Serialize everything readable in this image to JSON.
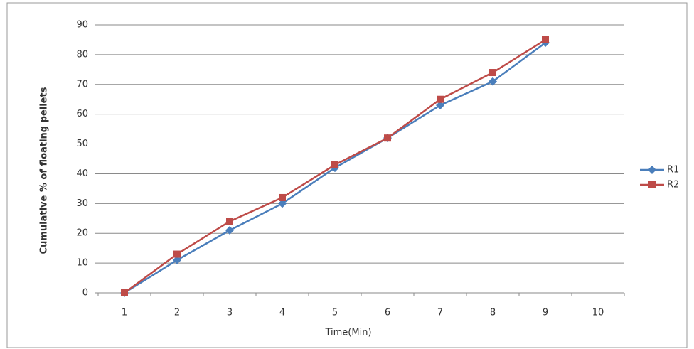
{
  "chart_data": {
    "type": "line",
    "x_label": "Time(Min)",
    "y_label": "Cumulative % of floating pellets",
    "categories": [
      1,
      2,
      3,
      4,
      5,
      6,
      7,
      8,
      9,
      10
    ],
    "series": [
      {
        "name": "R1",
        "color": "#4a7ebb",
        "marker": "diamond",
        "values": [
          0,
          11,
          21,
          30,
          42,
          52,
          63,
          71,
          84,
          null
        ]
      },
      {
        "name": "R2",
        "color": "#be4b48",
        "marker": "square",
        "values": [
          0,
          13,
          24,
          32,
          43,
          52,
          65,
          74,
          85,
          null
        ]
      }
    ],
    "ylim": [
      0,
      90
    ],
    "yticks": [
      0,
      10,
      20,
      30,
      40,
      50,
      60,
      70,
      80,
      90
    ],
    "grid": true,
    "legend": "right"
  }
}
